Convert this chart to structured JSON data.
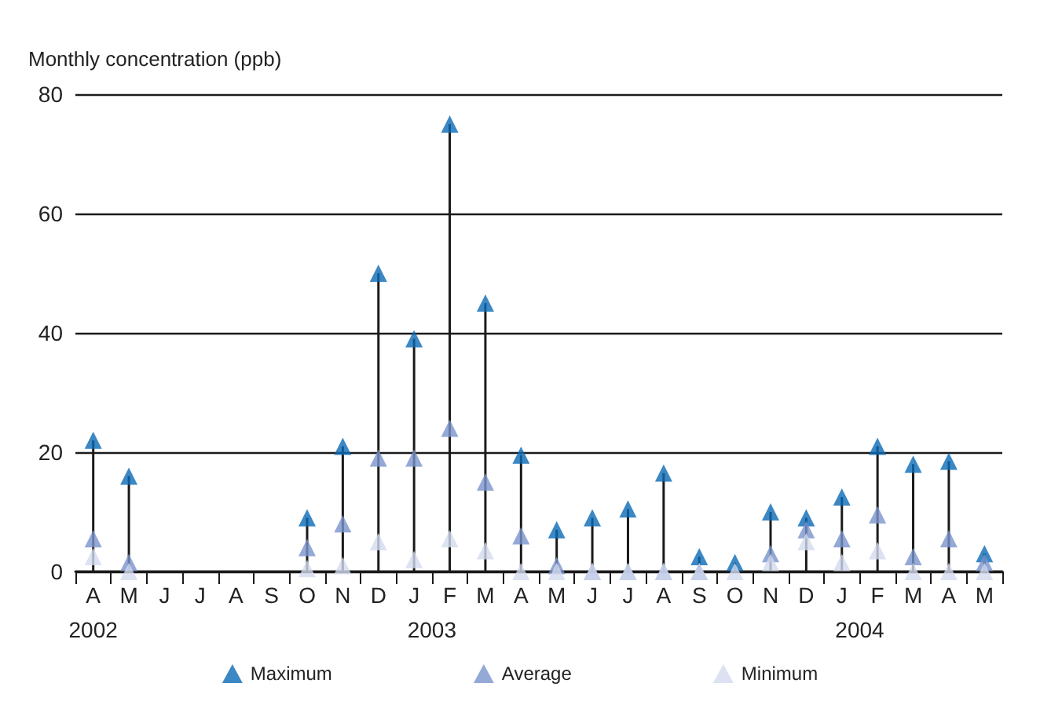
{
  "chart_data": {
    "type": "scatter",
    "ylabel": "Monthly concentration (ppb)",
    "categories": [
      "A",
      "M",
      "J",
      "J",
      "A",
      "S",
      "O",
      "N",
      "D",
      "J",
      "F",
      "M",
      "A",
      "M",
      "J",
      "J",
      "A",
      "S",
      "O",
      "N",
      "D",
      "J",
      "F",
      "M",
      "A",
      "M"
    ],
    "series": [
      {
        "name": "Maximum",
        "type": "lollipop",
        "color": "#0a6ab5",
        "values": [
          22,
          16,
          null,
          null,
          null,
          null,
          9,
          21,
          50,
          39,
          75,
          45,
          19.5,
          7,
          9,
          10.5,
          16.5,
          2.5,
          1.5,
          10,
          9,
          12.5,
          21,
          18,
          18.5,
          3
        ]
      },
      {
        "name": "Average",
        "color": "#7b93cc",
        "values": [
          5.5,
          1.5,
          null,
          null,
          null,
          null,
          4,
          8,
          19,
          19,
          24,
          15,
          6,
          1,
          0,
          0,
          0,
          0,
          null,
          3,
          7,
          5.5,
          9.5,
          2.5,
          5.5,
          1.5
        ]
      },
      {
        "name": "Minimum",
        "color": "#d3dbef",
        "values": [
          2.5,
          0,
          null,
          null,
          null,
          null,
          0.5,
          1,
          5,
          2,
          5.5,
          3.5,
          0,
          0,
          0,
          0,
          0,
          0,
          0,
          1.5,
          5,
          1.5,
          3.5,
          0,
          0,
          0
        ]
      }
    ],
    "ylim": [
      0,
      80
    ],
    "yticks": [
      0,
      20,
      40,
      60,
      80
    ],
    "grid": "y",
    "legend": "bottom",
    "marker": "triangle",
    "annotations": [
      "2002",
      "2003",
      "2004"
    ]
  }
}
